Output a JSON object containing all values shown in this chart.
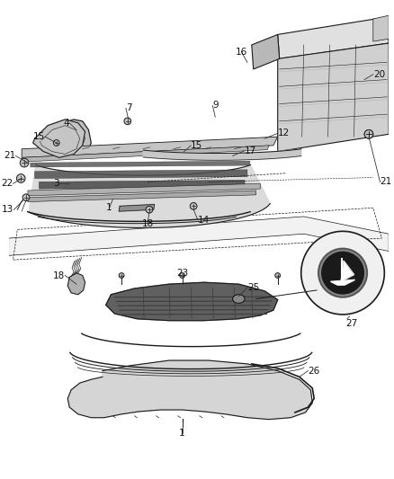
{
  "bg": "#ffffff",
  "lc": "#1a1a1a",
  "lc_light": "#666666",
  "fs": 7.5,
  "top_labels": [
    [
      "21",
      10,
      175,
      22,
      185
    ],
    [
      "15",
      42,
      162,
      52,
      155
    ],
    [
      "4",
      67,
      160,
      77,
      152
    ],
    [
      "7",
      130,
      108,
      138,
      98
    ],
    [
      "16",
      195,
      58,
      210,
      48
    ],
    [
      "20",
      385,
      92,
      395,
      82
    ],
    [
      "9",
      205,
      130,
      215,
      120
    ],
    [
      "22",
      18,
      195,
      8,
      203
    ],
    [
      "15",
      195,
      168,
      205,
      160
    ],
    [
      "12",
      275,
      155,
      295,
      148
    ],
    [
      "17",
      240,
      175,
      260,
      170
    ],
    [
      "3",
      78,
      202,
      65,
      202
    ],
    [
      "1",
      118,
      218,
      118,
      228
    ],
    [
      "13",
      18,
      222,
      8,
      232
    ],
    [
      "18",
      162,
      232,
      162,
      245
    ],
    [
      "14",
      213,
      228,
      220,
      240
    ],
    [
      "21",
      418,
      200,
      428,
      205
    ]
  ],
  "bot_labels": [
    [
      "18",
      85,
      320,
      72,
      310
    ],
    [
      "23",
      195,
      303,
      195,
      293
    ],
    [
      "25",
      248,
      313,
      258,
      305
    ],
    [
      "26",
      310,
      365,
      320,
      360
    ],
    [
      "1",
      185,
      435,
      185,
      445
    ],
    [
      "27",
      393,
      345,
      403,
      350
    ]
  ]
}
